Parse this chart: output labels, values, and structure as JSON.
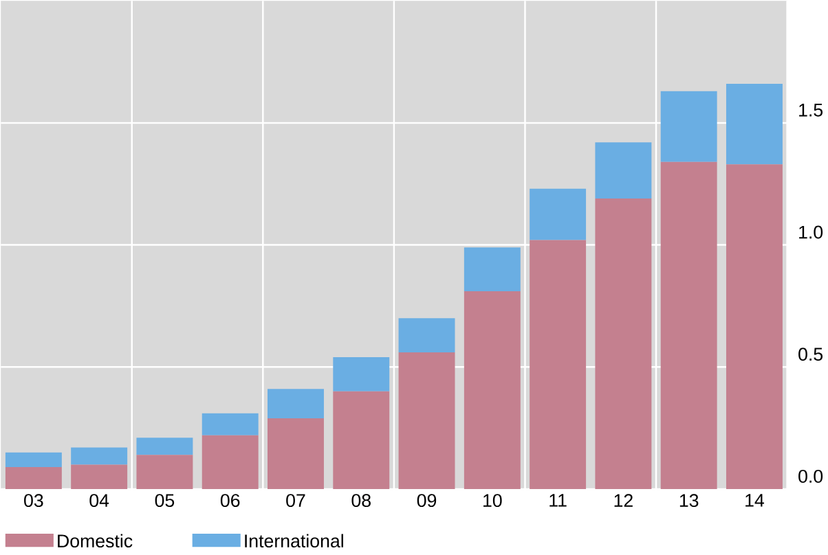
{
  "chart_data": {
    "type": "bar",
    "stacked": true,
    "categories": [
      "03",
      "04",
      "05",
      "06",
      "07",
      "08",
      "09",
      "10",
      "11",
      "12",
      "13",
      "14"
    ],
    "series": [
      {
        "name": "Domestic",
        "color": "#c4808f",
        "values": [
          0.09,
          0.1,
          0.14,
          0.22,
          0.29,
          0.4,
          0.56,
          0.81,
          1.02,
          1.19,
          1.34,
          1.33
        ]
      },
      {
        "name": "International",
        "color": "#6aaee3",
        "values": [
          0.06,
          0.07,
          0.07,
          0.09,
          0.12,
          0.14,
          0.14,
          0.18,
          0.21,
          0.23,
          0.29,
          0.33
        ]
      }
    ],
    "ylim": [
      0,
      2.0
    ],
    "yticks": [
      {
        "value": 0,
        "label": "0.0"
      },
      {
        "value": 0.5,
        "label": "0.5"
      },
      {
        "value": 1,
        "label": "1.0"
      },
      {
        "value": 1.5,
        "label": "1.5"
      }
    ],
    "grid": true,
    "legend": "bottom"
  }
}
